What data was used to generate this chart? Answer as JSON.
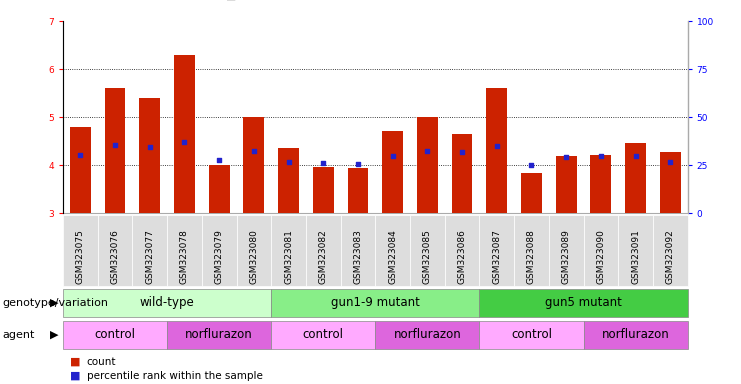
{
  "samples": [
    "GSM323075",
    "GSM323076",
    "GSM323077",
    "GSM323078",
    "GSM323079",
    "GSM323080",
    "GSM323081",
    "GSM323082",
    "GSM323083",
    "GSM323084",
    "GSM323085",
    "GSM323086",
    "GSM323087",
    "GSM323088",
    "GSM323089",
    "GSM323090",
    "GSM323091",
    "GSM323092"
  ],
  "counts": [
    4.8,
    5.6,
    5.4,
    6.3,
    4.0,
    5.0,
    4.35,
    3.97,
    3.95,
    4.72,
    5.0,
    4.65,
    5.6,
    3.83,
    4.18,
    4.22,
    4.47,
    4.28
  ],
  "percentile_rank": [
    4.22,
    4.42,
    4.38,
    4.48,
    4.1,
    4.3,
    4.07,
    4.04,
    4.02,
    4.2,
    4.3,
    4.28,
    4.4,
    4.0,
    4.17,
    4.2,
    4.2,
    4.07
  ],
  "bar_bottom": 3.0,
  "ylim_left": [
    3.0,
    7.0
  ],
  "ylim_right": [
    0,
    100
  ],
  "yticks_left": [
    3,
    4,
    5,
    6,
    7
  ],
  "yticks_right": [
    0,
    25,
    50,
    75,
    100
  ],
  "bar_color": "#cc2200",
  "dot_color": "#2222cc",
  "background_color": "#ffffff",
  "genotype_groups": [
    {
      "label": "wild-type",
      "start": 0,
      "end": 6,
      "color": "#ccffcc"
    },
    {
      "label": "gun1-9 mutant",
      "start": 6,
      "end": 12,
      "color": "#88ee88"
    },
    {
      "label": "gun5 mutant",
      "start": 12,
      "end": 18,
      "color": "#44cc44"
    }
  ],
  "agent_groups": [
    {
      "label": "control",
      "start": 0,
      "end": 3,
      "color": "#ffaaff"
    },
    {
      "label": "norflurazon",
      "start": 3,
      "end": 6,
      "color": "#dd66dd"
    },
    {
      "label": "control",
      "start": 6,
      "end": 9,
      "color": "#ffaaff"
    },
    {
      "label": "norflurazon",
      "start": 9,
      "end": 12,
      "color": "#dd66dd"
    },
    {
      "label": "control",
      "start": 12,
      "end": 15,
      "color": "#ffaaff"
    },
    {
      "label": "norflurazon",
      "start": 15,
      "end": 18,
      "color": "#dd66dd"
    }
  ],
  "legend_count_color": "#cc2200",
  "legend_pct_color": "#2222cc",
  "title_fontsize": 10,
  "tick_fontsize": 6.5,
  "label_fontsize": 8.5,
  "row_label_fontsize": 8,
  "legend_fontsize": 7.5
}
